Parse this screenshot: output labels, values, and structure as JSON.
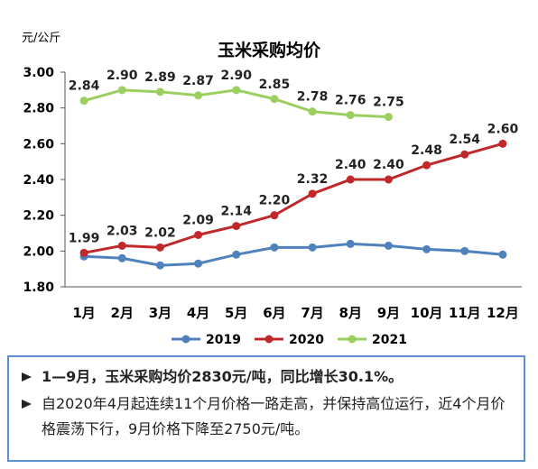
{
  "chart_data": {
    "type": "line",
    "title": "玉米采购均价",
    "ylabel": "元/公斤",
    "categories": [
      "1月",
      "2月",
      "3月",
      "4月",
      "5月",
      "6月",
      "7月",
      "8月",
      "9月",
      "10月",
      "11月",
      "12月"
    ],
    "series": [
      {
        "name": "2019",
        "color": "#4f81bd",
        "values": [
          1.97,
          1.96,
          1.92,
          1.93,
          1.98,
          2.02,
          2.02,
          2.04,
          2.03,
          2.01,
          2.0,
          1.98
        ]
      },
      {
        "name": "2020",
        "color": "#c0282a",
        "values": [
          1.99,
          2.03,
          2.02,
          2.09,
          2.14,
          2.2,
          2.32,
          2.4,
          2.4,
          2.48,
          2.54,
          2.6
        ],
        "value_labels": [
          "1.99",
          "2.03",
          "2.02",
          "2.09",
          "2.14",
          "2.20",
          "2.32",
          "2.40",
          "2.40",
          "2.48",
          "2.54",
          "2.60"
        ]
      },
      {
        "name": "2021",
        "color": "#9bcf5f",
        "values": [
          2.84,
          2.9,
          2.89,
          2.87,
          2.9,
          2.85,
          2.78,
          2.76,
          2.75,
          null,
          null,
          null
        ],
        "value_labels": [
          "2.84",
          "2.90",
          "2.89",
          "2.87",
          "2.90",
          "2.85",
          "2.78",
          "2.76",
          "2.75",
          null,
          null,
          null
        ]
      }
    ],
    "ylim": [
      1.8,
      3.0
    ],
    "yticks": [
      {
        "value": 1.8,
        "label": "1.80"
      },
      {
        "value": 2.0,
        "label": "2.00"
      },
      {
        "value": 2.2,
        "label": "2.20"
      },
      {
        "value": 2.4,
        "label": "2.40"
      },
      {
        "value": 2.6,
        "label": "2.60"
      },
      {
        "value": 2.8,
        "label": "2.80"
      },
      {
        "value": 3.0,
        "label": "3.00"
      }
    ],
    "legend": "bottom"
  },
  "notes": [
    "1—9月，玉米采购均价2830元/吨，同比增长30.1%。",
    "自2020年4月起连续11个月价格一路走高，并保持高位运行，近4个月价格震荡下行，9月价格下降至2750元/吨。"
  ]
}
